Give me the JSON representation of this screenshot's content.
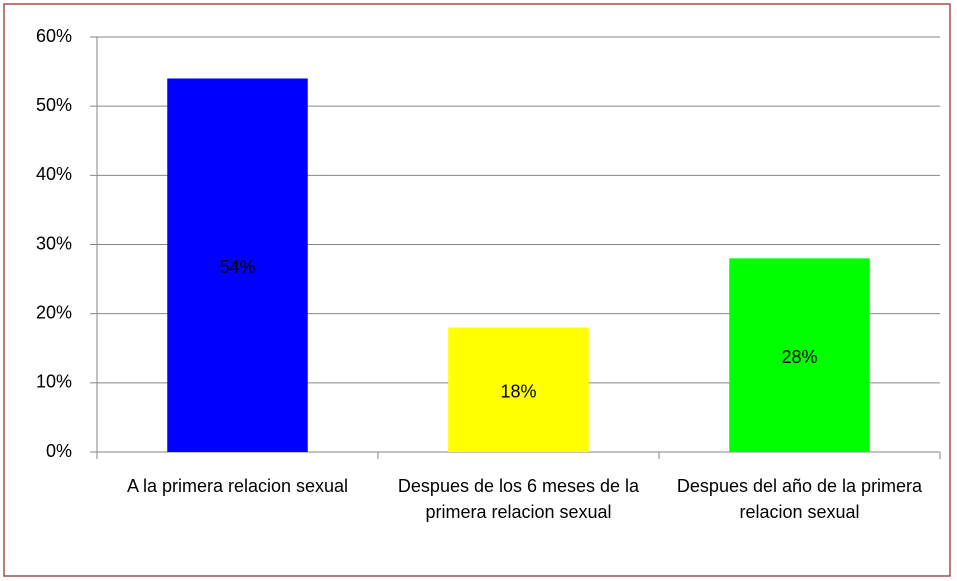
{
  "chart_data": {
    "type": "bar",
    "categories": [
      "A la primera relacion sexual",
      "Despues de los 6 meses de la primera relacion sexual",
      "Despues del año de la primera relacion sexual"
    ],
    "values": [
      54,
      18,
      28
    ],
    "value_labels": [
      "54%",
      "18%",
      "28%"
    ],
    "colors": [
      "#0000ff",
      "#ffff00",
      "#00ff00"
    ],
    "ylim": [
      0,
      60
    ],
    "yticks": [
      {
        "value": 0,
        "label": "0%"
      },
      {
        "value": 10,
        "label": "10%"
      },
      {
        "value": 20,
        "label": "20%"
      },
      {
        "value": 30,
        "label": "30%"
      },
      {
        "value": 40,
        "label": "40%"
      },
      {
        "value": 50,
        "label": "50%"
      },
      {
        "value": 60,
        "label": "60%"
      }
    ],
    "grid": true
  }
}
